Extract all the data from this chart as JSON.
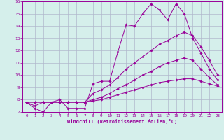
{
  "title": "",
  "xlabel": "Windchill (Refroidissement éolien,°C)",
  "ylabel": "",
  "background_color": "#d5efeb",
  "line_color": "#990099",
  "grid_color": "#b0b8cc",
  "xlim": [
    -0.5,
    23.5
  ],
  "ylim": [
    7,
    16
  ],
  "xticks": [
    0,
    1,
    2,
    3,
    4,
    5,
    6,
    7,
    8,
    9,
    10,
    11,
    12,
    13,
    14,
    15,
    16,
    17,
    18,
    19,
    20,
    21,
    22,
    23
  ],
  "yticks": [
    7,
    8,
    9,
    10,
    11,
    12,
    13,
    14,
    15,
    16
  ],
  "series": {
    "line1": [
      7.8,
      7.3,
      7.0,
      7.8,
      8.0,
      7.3,
      7.3,
      7.3,
      9.3,
      9.5,
      9.5,
      11.9,
      14.1,
      14.0,
      15.0,
      15.8,
      15.3,
      14.5,
      15.8,
      15.0,
      13.0,
      11.8,
      10.5,
      9.6
    ],
    "line2": [
      7.8,
      7.5,
      7.8,
      7.8,
      7.8,
      7.8,
      7.8,
      7.8,
      8.5,
      8.8,
      9.2,
      9.8,
      10.5,
      11.0,
      11.5,
      12.0,
      12.5,
      12.8,
      13.2,
      13.5,
      13.2,
      12.3,
      11.2,
      10.0
    ],
    "line3": [
      7.8,
      7.8,
      7.8,
      7.8,
      7.8,
      7.8,
      7.8,
      7.8,
      7.9,
      8.0,
      8.2,
      8.4,
      8.6,
      8.8,
      9.0,
      9.2,
      9.4,
      9.5,
      9.6,
      9.7,
      9.7,
      9.5,
      9.3,
      9.1
    ],
    "line4": [
      7.8,
      7.8,
      7.8,
      7.8,
      7.8,
      7.8,
      7.8,
      7.8,
      8.0,
      8.2,
      8.5,
      8.9,
      9.2,
      9.6,
      10.0,
      10.3,
      10.7,
      11.0,
      11.2,
      11.4,
      11.2,
      10.5,
      9.8,
      9.2
    ]
  }
}
